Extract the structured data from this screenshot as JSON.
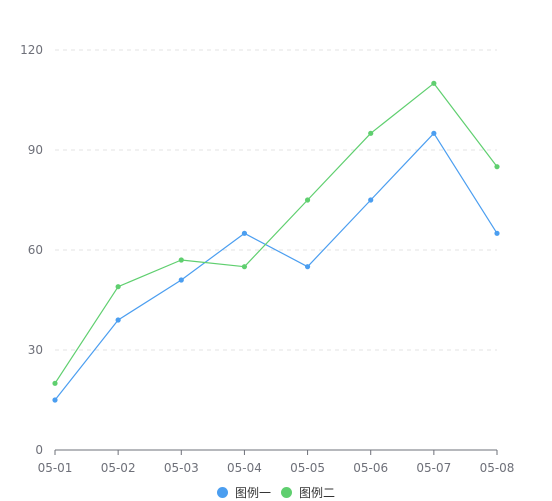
{
  "chart_data": {
    "type": "line",
    "categories": [
      "05-01",
      "05-02",
      "05-03",
      "05-04",
      "05-05",
      "05-06",
      "05-07",
      "05-08"
    ],
    "series": [
      {
        "name": "图例一",
        "color": "#4b9ef0",
        "values": [
          15,
          39,
          51,
          65,
          55,
          75,
          95,
          65
        ]
      },
      {
        "name": "图例二",
        "color": "#5fcf6f",
        "values": [
          20,
          49,
          57,
          55,
          75,
          95,
          110,
          85
        ]
      }
    ],
    "y_ticks": [
      0,
      30,
      60,
      90,
      120
    ],
    "ylim": [
      0,
      120
    ],
    "grid": "horizontal dashed",
    "legend_position": "bottom-center"
  }
}
